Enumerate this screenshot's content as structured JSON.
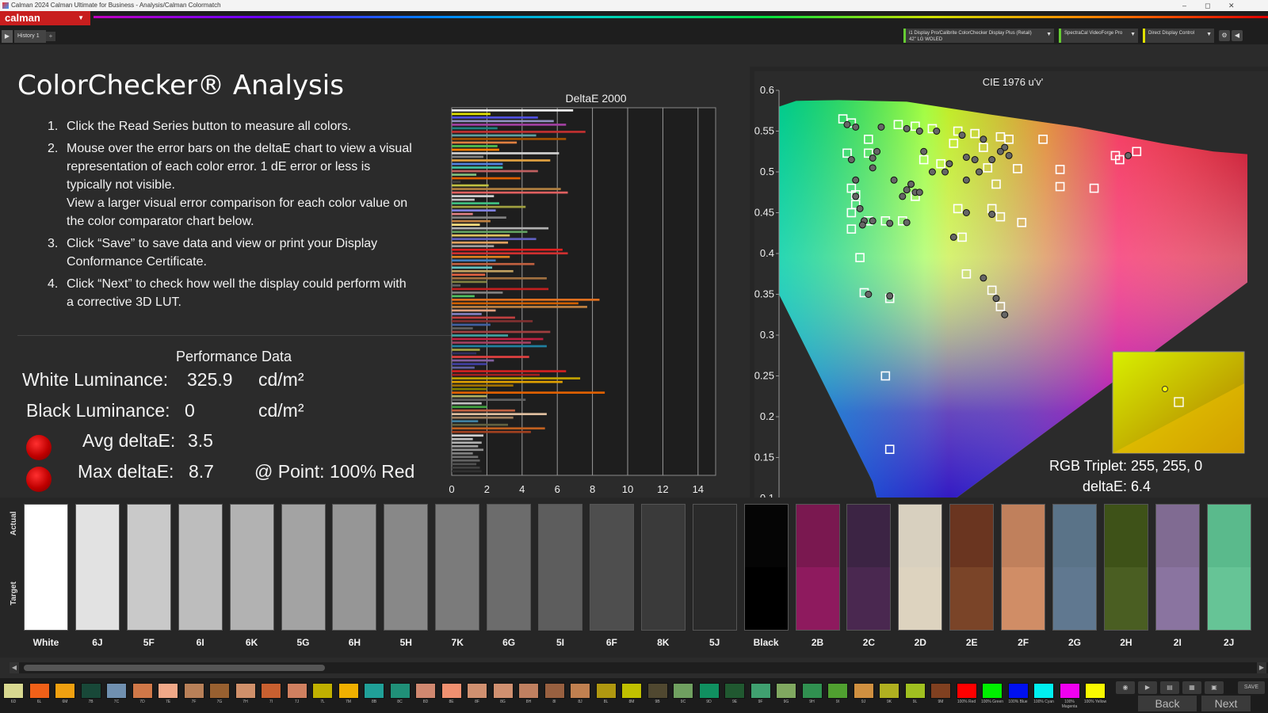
{
  "window": {
    "title": "Calman 2024 Calman Ultimate for Business  - Analysis/Calman Colormatch",
    "controls": [
      "–",
      "◻",
      "✕"
    ]
  },
  "toolbar": {
    "logo": "calman",
    "history_tab": "History 1",
    "add_tab": "+",
    "devices": [
      {
        "line1": "i1 Display Pro/Calibrite ColorChecker Display Plus (Retail)",
        "line2": "42\" LG WOLED",
        "color": "#66cc33"
      },
      {
        "line1": "SpectraCal VideoForge Pro",
        "line2": "",
        "color": "#66cc33"
      },
      {
        "line1": "Direct Display Control",
        "line2": "",
        "color": "#e0e000"
      }
    ]
  },
  "page": {
    "title": "ColorChecker® Analysis",
    "steps": [
      {
        "num": "1.",
        "lines": [
          "Click the Read Series button to measure all colors."
        ]
      },
      {
        "num": "2.",
        "lines": [
          "Mouse over the error bars on the deltaE chart to view a visual",
          "representation of each color error. 1 dE error or less is",
          "typically not visible.",
          "View a larger visual error comparison for each color value on",
          "the color comparator chart below."
        ]
      },
      {
        "num": "3.",
        "lines": [
          "Click “Save” to save data and view or print your Display",
          "Conformance Certificate."
        ]
      },
      {
        "num": "4.",
        "lines": [
          "Click “Next” to check how well the display could perform with",
          "a corrective 3D LUT."
        ]
      }
    ]
  },
  "performance": {
    "title": "Performance Data",
    "white_label": "White Luminance:",
    "white_value": "325.9",
    "white_unit": "cd/m²",
    "black_label": "Black Luminance:",
    "black_value": "0",
    "black_unit": "cd/m²",
    "avg_label": "Avg deltaE:",
    "avg_value": "3.5",
    "max_label": "Max deltaE:",
    "max_value": "8.7",
    "point_text": "@ Point: 100% Red",
    "status_color": "#cc0000"
  },
  "chart_data": [
    {
      "type": "bar",
      "title": "DeltaE 2000",
      "orientation": "horizontal",
      "xlim": [
        0,
        15
      ],
      "xticks": [
        0,
        2,
        4,
        6,
        8,
        10,
        12,
        14
      ],
      "grid": true,
      "values": [
        6.9,
        2.2,
        4.9,
        5.8,
        6.5,
        2.6,
        7.6,
        4.8,
        6.5,
        3.7,
        2.6,
        2.7,
        6.1,
        1.8,
        5.6,
        2.9,
        2.9,
        4.9,
        1.4,
        3.9,
        0.5,
        2.1,
        6.2,
        6.6,
        2.4,
        1.3,
        2.7,
        4.2,
        2.5,
        1.2,
        3.1,
        2.2,
        1.6,
        5.5,
        4.3,
        3.3,
        4.8,
        3.2,
        2.4,
        6.3,
        6.6,
        3.3,
        2.5,
        4.7,
        2.3,
        3.5,
        1.9,
        5.4,
        2.0,
        0.5,
        5.5,
        2.9,
        1.3,
        8.4,
        7.2,
        7.7,
        2.5,
        1.7,
        3.6,
        4.6,
        2.2,
        1.2,
        5.6,
        3.2,
        5.2,
        4.5,
        5.4,
        1.6,
        1.4,
        4.4,
        2.4,
        2.0,
        1.3,
        6.5,
        5.0,
        7.3,
        6.3,
        3.5,
        2.0,
        8.7,
        2.0,
        4.2,
        1.7,
        2.0,
        3.6,
        5.4,
        3.5,
        1.5,
        3.2,
        5.3,
        4.5,
        1.8,
        1.2,
        1.7,
        1.5,
        1.8,
        1.2,
        1.5,
        1.6,
        1.4,
        1.6,
        1.7
      ],
      "colors": [
        "#f5f5f5",
        "#e0e000",
        "#5050e0",
        "#9090c0",
        "#a040a0",
        "#208080",
        "#c03030",
        "#60a0a0",
        "#a05000",
        "#e08040",
        "#50c050",
        "#ff8000",
        "#d0d0d0",
        "#808080",
        "#e0a040",
        "#5080e0",
        "#40c0a0",
        "#c06060",
        "#80c080",
        "#e06000",
        "#404040",
        "#c0c040",
        "#b08040",
        "#e06060",
        "#d0d0d0",
        "#c0c0c0",
        "#40c080",
        "#a0a040",
        "#8080e0",
        "#e08080",
        "#808080",
        "#c08040",
        "#ffe080",
        "#b0b0b0",
        "#60a060",
        "#e0c060",
        "#6060c0",
        "#e0a060",
        "#a0a0a0",
        "#e02020",
        "#d03030",
        "#e08020",
        "#4080c0",
        "#c06040",
        "#60c0c0",
        "#c0a060",
        "#e06040",
        "#a07040",
        "#808040",
        "#606060",
        "#c02020",
        "#808080",
        "#50c060",
        "#e07020",
        "#d06000",
        "#c08040",
        "#e0a080",
        "#8080c0",
        "#c04040",
        "#803030",
        "#4060a0",
        "#606060",
        "#a04040",
        "#40a0a0",
        "#c02040",
        "#a04060",
        "#2080a0",
        "#a0a040",
        "#303060",
        "#e04040",
        "#8060a0",
        "#4040a0",
        "#6060a0",
        "#d02020",
        "#a02020",
        "#c0a000",
        "#e0a000",
        "#a07000",
        "#808000",
        "#e06000",
        "#b0b060",
        "#606060",
        "#c0c0c0",
        "#40a040",
        "#c06040",
        "#e0c0a0",
        "#a08060",
        "#4080a0",
        "#606040",
        "#c06020",
        "#a04020",
        "#d0d0d0",
        "#c0c0c0",
        "#b0b0b0",
        "#a0a0a0",
        "#909090",
        "#808080",
        "#707070",
        "#606060",
        "#505050",
        "#404040",
        "#303030"
      ]
    },
    {
      "type": "scatter",
      "title": "CIE 1976 u'v'",
      "xlim": [
        0.05,
        0.6
      ],
      "ylim": [
        0.1,
        0.6
      ],
      "xticks": [
        0.05,
        0.1,
        0.15,
        0.2,
        0.25,
        0.3,
        0.35,
        0.4,
        0.45,
        0.5,
        0.55
      ],
      "yticks": [
        0.1,
        0.15,
        0.2,
        0.25,
        0.3,
        0.35,
        0.4,
        0.45,
        0.5,
        0.55,
        0.6
      ],
      "yticklabels": [
        "0.1",
        "0.15",
        "0.2",
        "0.25",
        "0.3",
        "0.35",
        "0.4",
        "0.45",
        "0.5",
        "0.55",
        "0.6"
      ],
      "targets": [
        [
          0.125,
          0.565
        ],
        [
          0.135,
          0.56
        ],
        [
          0.19,
          0.558
        ],
        [
          0.21,
          0.556
        ],
        [
          0.23,
          0.553
        ],
        [
          0.26,
          0.55
        ],
        [
          0.28,
          0.547
        ],
        [
          0.31,
          0.543
        ],
        [
          0.36,
          0.54
        ],
        [
          0.47,
          0.525
        ],
        [
          0.445,
          0.52
        ],
        [
          0.45,
          0.515
        ],
        [
          0.13,
          0.523
        ],
        [
          0.155,
          0.523
        ],
        [
          0.135,
          0.48
        ],
        [
          0.14,
          0.472
        ],
        [
          0.14,
          0.46
        ],
        [
          0.135,
          0.45
        ],
        [
          0.155,
          0.44
        ],
        [
          0.175,
          0.44
        ],
        [
          0.195,
          0.44
        ],
        [
          0.135,
          0.43
        ],
        [
          0.145,
          0.395
        ],
        [
          0.15,
          0.352
        ],
        [
          0.18,
          0.345
        ],
        [
          0.175,
          0.25
        ],
        [
          0.18,
          0.16
        ],
        [
          0.26,
          0.455
        ],
        [
          0.265,
          0.42
        ],
        [
          0.3,
          0.455
        ],
        [
          0.31,
          0.445
        ],
        [
          0.3,
          0.355
        ],
        [
          0.31,
          0.335
        ],
        [
          0.27,
          0.375
        ],
        [
          0.335,
          0.438
        ],
        [
          0.38,
          0.503
        ],
        [
          0.38,
          0.482
        ],
        [
          0.42,
          0.48
        ],
        [
          0.29,
          0.53
        ],
        [
          0.295,
          0.505
        ],
        [
          0.22,
          0.515
        ],
        [
          0.24,
          0.51
        ],
        [
          0.255,
          0.535
        ],
        [
          0.305,
          0.485
        ],
        [
          0.33,
          0.504
        ],
        [
          0.21,
          0.47
        ],
        [
          0.155,
          0.54
        ],
        [
          0.32,
          0.54
        ]
      ],
      "measured": [
        [
          0.13,
          0.558
        ],
        [
          0.14,
          0.555
        ],
        [
          0.2,
          0.553
        ],
        [
          0.215,
          0.55
        ],
        [
          0.235,
          0.55
        ],
        [
          0.265,
          0.545
        ],
        [
          0.29,
          0.54
        ],
        [
          0.315,
          0.53
        ],
        [
          0.46,
          0.52
        ],
        [
          0.135,
          0.515
        ],
        [
          0.16,
          0.517
        ],
        [
          0.14,
          0.47
        ],
        [
          0.145,
          0.455
        ],
        [
          0.15,
          0.44
        ],
        [
          0.16,
          0.44
        ],
        [
          0.18,
          0.437
        ],
        [
          0.2,
          0.438
        ],
        [
          0.148,
          0.435
        ],
        [
          0.155,
          0.35
        ],
        [
          0.18,
          0.348
        ],
        [
          0.27,
          0.45
        ],
        [
          0.255,
          0.42
        ],
        [
          0.3,
          0.448
        ],
        [
          0.29,
          0.37
        ],
        [
          0.315,
          0.325
        ],
        [
          0.305,
          0.345
        ],
        [
          0.27,
          0.49
        ],
        [
          0.285,
          0.5
        ],
        [
          0.3,
          0.515
        ],
        [
          0.31,
          0.525
        ],
        [
          0.32,
          0.52
        ],
        [
          0.22,
          0.525
        ],
        [
          0.205,
          0.485
        ],
        [
          0.21,
          0.475
        ],
        [
          0.185,
          0.49
        ],
        [
          0.195,
          0.47
        ],
        [
          0.2,
          0.478
        ],
        [
          0.23,
          0.5
        ],
        [
          0.245,
          0.5
        ],
        [
          0.25,
          0.51
        ],
        [
          0.27,
          0.518
        ],
        [
          0.28,
          0.515
        ],
        [
          0.165,
          0.525
        ],
        [
          0.16,
          0.505
        ],
        [
          0.215,
          0.475
        ],
        [
          0.205,
          0.485
        ],
        [
          0.14,
          0.49
        ],
        [
          0.17,
          0.555
        ]
      ],
      "inset": {
        "line1": "RGB Triplet: 255, 255, 0",
        "line2": "deltaE: 6.4"
      }
    }
  ],
  "swatches": {
    "actual_label": "Actual",
    "target_label": "Target",
    "items": [
      {
        "name": "White",
        "actual": "#ffffff",
        "target": "#ffffff"
      },
      {
        "name": "6J",
        "actual": "#e2e2e2",
        "target": "#e2e2e2"
      },
      {
        "name": "5F",
        "actual": "#c9c9c9",
        "target": "#c9c9c9"
      },
      {
        "name": "6I",
        "actual": "#bdbdbd",
        "target": "#bdbdbd"
      },
      {
        "name": "6K",
        "actual": "#b2b2b2",
        "target": "#b2b2b2"
      },
      {
        "name": "5G",
        "actual": "#a3a3a3",
        "target": "#a3a3a3"
      },
      {
        "name": "6H",
        "actual": "#969696",
        "target": "#969696"
      },
      {
        "name": "5H",
        "actual": "#888888",
        "target": "#888888"
      },
      {
        "name": "7K",
        "actual": "#7b7b7b",
        "target": "#7b7b7b"
      },
      {
        "name": "6G",
        "actual": "#6c6c6c",
        "target": "#6c6c6c"
      },
      {
        "name": "5I",
        "actual": "#5d5d5d",
        "target": "#5d5d5d"
      },
      {
        "name": "6F",
        "actual": "#4e4e4e",
        "target": "#4e4e4e"
      },
      {
        "name": "8K",
        "actual": "#3a3a3a",
        "target": "#3a3a3a"
      },
      {
        "name": "5J",
        "actual": "#2a2a2a",
        "target": "#2a2a2a"
      },
      {
        "name": "Black",
        "actual": "#050505",
        "target": "#000000"
      },
      {
        "name": "2B",
        "actual": "#7a1850",
        "target": "#8e1a5e"
      },
      {
        "name": "2C",
        "actual": "#3c2444",
        "target": "#4a2850"
      },
      {
        "name": "2D",
        "actual": "#d8d0bf",
        "target": "#ddd3bf"
      },
      {
        "name": "2E",
        "actual": "#6a3520",
        "target": "#7a4428"
      },
      {
        "name": "2F",
        "actual": "#c0805c",
        "target": "#d08d66"
      },
      {
        "name": "2G",
        "actual": "#5a7388",
        "target": "#607890"
      },
      {
        "name": "2H",
        "actual": "#3e5218",
        "target": "#4a5e22"
      },
      {
        "name": "2I",
        "actual": "#806b92",
        "target": "#8a74a0"
      },
      {
        "name": "2J",
        "actual": "#5aba8c",
        "target": "#66c496"
      }
    ]
  },
  "scroll": {
    "left": "◀",
    "right": "▶"
  },
  "bottom": {
    "chips": [
      {
        "label": "6D",
        "color": "#d8d890"
      },
      {
        "label": "6L",
        "color": "#f06018"
      },
      {
        "label": "6M",
        "color": "#f0a010"
      },
      {
        "label": "7B",
        "color": "#184838"
      },
      {
        "label": "7C",
        "color": "#7090b0"
      },
      {
        "label": "7D",
        "color": "#d07848"
      },
      {
        "label": "7E",
        "color": "#f0a888"
      },
      {
        "label": "7F",
        "color": "#b88058"
      },
      {
        "label": "7G",
        "color": "#986030"
      },
      {
        "label": "7H",
        "color": "#d0906a"
      },
      {
        "label": "7I",
        "color": "#c86030"
      },
      {
        "label": "7J",
        "color": "#d08060"
      },
      {
        "label": "7L",
        "color": "#c0b000"
      },
      {
        "label": "7M",
        "color": "#f0b000"
      },
      {
        "label": "8B",
        "color": "#20a098"
      },
      {
        "label": "8C",
        "color": "#209078"
      },
      {
        "label": "8D",
        "color": "#d08870"
      },
      {
        "label": "8E",
        "color": "#f09070"
      },
      {
        "label": "8F",
        "color": "#d09070"
      },
      {
        "label": "8G",
        "color": "#d09070"
      },
      {
        "label": "8H",
        "color": "#c08060"
      },
      {
        "label": "8I",
        "color": "#986040"
      },
      {
        "label": "8J",
        "color": "#c08050"
      },
      {
        "label": "8L",
        "color": "#b09810"
      },
      {
        "label": "8M",
        "color": "#c0c000"
      },
      {
        "label": "9B",
        "color": "#504830"
      },
      {
        "label": "9C",
        "color": "#70a060"
      },
      {
        "label": "9D",
        "color": "#109060"
      },
      {
        "label": "9E",
        "color": "#205830"
      },
      {
        "label": "9F",
        "color": "#40a070"
      },
      {
        "label": "9G",
        "color": "#80a860"
      },
      {
        "label": "9H",
        "color": "#309050"
      },
      {
        "label": "9I",
        "color": "#50a030"
      },
      {
        "label": "9J",
        "color": "#d09040"
      },
      {
        "label": "9K",
        "color": "#b0b020"
      },
      {
        "label": "9L",
        "color": "#a0c020"
      },
      {
        "label": "9M",
        "color": "#804020"
      },
      {
        "label": "100% Red",
        "color": "#ff0000"
      },
      {
        "label": "100% Green",
        "color": "#00f000"
      },
      {
        "label": "100% Blue",
        "color": "#0010f0"
      },
      {
        "label": "100% Cyan",
        "color": "#00f0f0"
      },
      {
        "label": "100% Magenta",
        "color": "#f000f0"
      },
      {
        "label": "100% Yellow",
        "color": "#f8f800"
      }
    ],
    "back_label": "Back",
    "next_label": "Next",
    "save_label": "SAVE"
  }
}
